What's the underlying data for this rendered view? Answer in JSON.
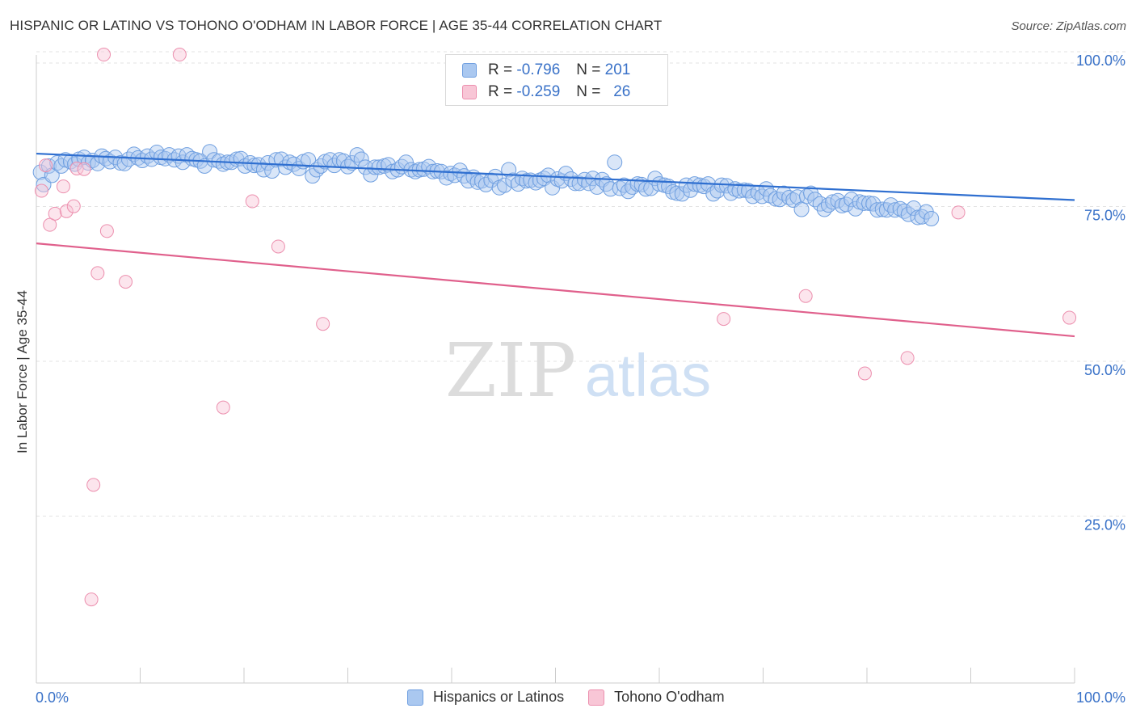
{
  "header": {
    "title": "HISPANIC OR LATINO VS TOHONO O'ODHAM IN LABOR FORCE | AGE 35-44 CORRELATION CHART",
    "source": "Source: ZipAtlas.com"
  },
  "watermark": {
    "zip": "ZIP",
    "atlas": "atlas"
  },
  "legend": {
    "r_label": "R =",
    "n_label": "N =",
    "series": [
      {
        "name": "Hispanics or Latinos",
        "r": "-0.796",
        "n": "201",
        "fill": "#aac8f0",
        "stroke": "#6f9fe0"
      },
      {
        "name": "Tohono O'odham",
        "r": "-0.259",
        "n": "26",
        "fill": "#f8c6d6",
        "stroke": "#ec8fae"
      }
    ]
  },
  "chart_data": {
    "type": "scatter",
    "title": "HISPANIC OR LATINO VS TOHONO O'ODHAM IN LABOR FORCE | AGE 35-44 CORRELATION CHART",
    "xlabel": "",
    "ylabel": "In Labor Force | Age 35-44",
    "xlim": [
      0,
      100
    ],
    "ylim": [
      0,
      105
    ],
    "x_tick_labels": [
      "0.0%",
      "100.0%"
    ],
    "y_tick_labels": [
      "100.0%",
      "75.0%",
      "50.0%",
      "25.0%"
    ],
    "y_ticks": [
      100,
      75,
      50,
      25
    ],
    "grid": true,
    "legend_position": "top-center",
    "colors": {
      "blue_line": "#2f6fd0",
      "pink_line": "#e0608c",
      "axis_text": "#3a72c8"
    },
    "series": [
      {
        "name": "Hispanics or Latinos",
        "trend": {
          "x": [
            0,
            100
          ],
          "y": [
            85.5,
            78.0
          ]
        },
        "points": [
          [
            0.4,
            82.5
          ],
          [
            0.7,
            80.5
          ],
          [
            1.2,
            83.5
          ],
          [
            1.5,
            82.0
          ],
          [
            2.0,
            84.0
          ],
          [
            2.4,
            83.5
          ],
          [
            2.8,
            84.5
          ],
          [
            3.3,
            84.2
          ],
          [
            3.7,
            83.8
          ],
          [
            4.1,
            84.6
          ],
          [
            4.6,
            84.9
          ],
          [
            5.0,
            84.0
          ],
          [
            5.4,
            84.4
          ],
          [
            5.9,
            83.9
          ],
          [
            6.3,
            85.1
          ],
          [
            6.7,
            84.7
          ],
          [
            7.1,
            84.2
          ],
          [
            7.6,
            84.9
          ],
          [
            8.1,
            84.0
          ],
          [
            8.5,
            83.9
          ],
          [
            8.9,
            84.6
          ],
          [
            9.4,
            85.4
          ],
          [
            9.8,
            84.8
          ],
          [
            10.2,
            84.4
          ],
          [
            10.7,
            85.1
          ],
          [
            11.1,
            84.6
          ],
          [
            11.6,
            85.7
          ],
          [
            12.0,
            84.9
          ],
          [
            12.4,
            84.7
          ],
          [
            12.8,
            85.3
          ],
          [
            13.3,
            84.5
          ],
          [
            13.7,
            85.1
          ],
          [
            14.1,
            84.1
          ],
          [
            14.5,
            85.3
          ],
          [
            15.0,
            84.7
          ],
          [
            15.4,
            84.5
          ],
          [
            15.8,
            84.3
          ],
          [
            16.2,
            83.5
          ],
          [
            16.7,
            85.8
          ],
          [
            17.1,
            84.5
          ],
          [
            17.6,
            84.3
          ],
          [
            18.0,
            83.8
          ],
          [
            18.4,
            84.1
          ],
          [
            18.8,
            84.1
          ],
          [
            19.3,
            84.6
          ],
          [
            19.7,
            84.7
          ],
          [
            20.1,
            83.5
          ],
          [
            20.6,
            84.0
          ],
          [
            21.0,
            83.6
          ],
          [
            21.4,
            83.7
          ],
          [
            21.9,
            82.9
          ],
          [
            22.3,
            84.0
          ],
          [
            22.7,
            82.7
          ],
          [
            23.1,
            84.5
          ],
          [
            23.6,
            84.6
          ],
          [
            24.0,
            83.3
          ],
          [
            24.4,
            84.1
          ],
          [
            24.8,
            83.8
          ],
          [
            25.3,
            83.1
          ],
          [
            25.7,
            84.2
          ],
          [
            26.2,
            84.5
          ],
          [
            26.6,
            81.9
          ],
          [
            27.0,
            82.9
          ],
          [
            27.4,
            83.5
          ],
          [
            27.8,
            84.2
          ],
          [
            28.3,
            84.5
          ],
          [
            28.7,
            83.6
          ],
          [
            29.2,
            84.5
          ],
          [
            29.6,
            84.3
          ],
          [
            30.0,
            83.4
          ],
          [
            30.4,
            84.0
          ],
          [
            30.9,
            85.3
          ],
          [
            31.3,
            84.6
          ],
          [
            31.7,
            83.3
          ],
          [
            32.2,
            82.1
          ],
          [
            32.6,
            83.3
          ],
          [
            33.0,
            83.3
          ],
          [
            33.5,
            83.5
          ],
          [
            33.9,
            83.7
          ],
          [
            34.3,
            82.6
          ],
          [
            34.8,
            82.9
          ],
          [
            35.2,
            83.4
          ],
          [
            35.6,
            84.1
          ],
          [
            36.1,
            82.9
          ],
          [
            36.5,
            82.6
          ],
          [
            36.9,
            82.9
          ],
          [
            37.3,
            83.0
          ],
          [
            37.8,
            83.4
          ],
          [
            38.2,
            82.6
          ],
          [
            38.6,
            82.7
          ],
          [
            39.0,
            82.6
          ],
          [
            39.5,
            81.6
          ],
          [
            39.9,
            82.3
          ],
          [
            40.3,
            82.0
          ],
          [
            40.8,
            82.8
          ],
          [
            41.2,
            81.9
          ],
          [
            41.6,
            81.1
          ],
          [
            42.1,
            81.7
          ],
          [
            42.5,
            80.9
          ],
          [
            42.9,
            81.1
          ],
          [
            43.3,
            80.5
          ],
          [
            43.8,
            81.2
          ],
          [
            44.2,
            81.8
          ],
          [
            44.6,
            80.0
          ],
          [
            45.1,
            80.4
          ],
          [
            45.5,
            82.9
          ],
          [
            45.9,
            81.2
          ],
          [
            46.4,
            80.6
          ],
          [
            46.8,
            81.5
          ],
          [
            47.2,
            81.1
          ],
          [
            47.6,
            81.2
          ],
          [
            48.1,
            80.8
          ],
          [
            48.5,
            81.2
          ],
          [
            48.9,
            81.5
          ],
          [
            49.3,
            82.0
          ],
          [
            49.7,
            80.0
          ],
          [
            50.2,
            81.4
          ],
          [
            50.6,
            81.1
          ],
          [
            51.0,
            82.3
          ],
          [
            51.5,
            81.4
          ],
          [
            51.9,
            80.7
          ],
          [
            52.3,
            80.7
          ],
          [
            52.8,
            81.3
          ],
          [
            53.2,
            80.7
          ],
          [
            53.6,
            81.5
          ],
          [
            54.0,
            80.1
          ],
          [
            54.5,
            81.3
          ],
          [
            54.9,
            80.6
          ],
          [
            55.3,
            79.8
          ],
          [
            55.7,
            84.1
          ],
          [
            56.2,
            79.9
          ],
          [
            56.6,
            80.4
          ],
          [
            57.0,
            79.4
          ],
          [
            57.4,
            80.1
          ],
          [
            57.9,
            80.6
          ],
          [
            58.3,
            80.5
          ],
          [
            58.7,
            79.8
          ],
          [
            59.2,
            79.9
          ],
          [
            59.6,
            81.5
          ],
          [
            60.0,
            80.6
          ],
          [
            60.5,
            80.4
          ],
          [
            60.9,
            80.2
          ],
          [
            61.3,
            79.3
          ],
          [
            61.7,
            79.1
          ],
          [
            62.2,
            79.0
          ],
          [
            62.6,
            80.4
          ],
          [
            63.0,
            79.6
          ],
          [
            63.4,
            80.6
          ],
          [
            63.9,
            80.4
          ],
          [
            64.3,
            80.2
          ],
          [
            64.7,
            80.6
          ],
          [
            65.2,
            79.0
          ],
          [
            65.6,
            79.5
          ],
          [
            66.0,
            80.4
          ],
          [
            66.5,
            80.3
          ],
          [
            66.9,
            79.1
          ],
          [
            67.3,
            79.8
          ],
          [
            67.7,
            79.5
          ],
          [
            68.2,
            79.6
          ],
          [
            68.6,
            79.5
          ],
          [
            69.0,
            78.6
          ],
          [
            69.5,
            79.2
          ],
          [
            69.9,
            78.6
          ],
          [
            70.3,
            79.8
          ],
          [
            70.7,
            78.7
          ],
          [
            71.2,
            78.2
          ],
          [
            71.6,
            78.1
          ],
          [
            72.0,
            79.1
          ],
          [
            72.5,
            78.4
          ],
          [
            72.9,
            78.0
          ],
          [
            73.3,
            78.5
          ],
          [
            73.7,
            76.5
          ],
          [
            74.2,
            78.6
          ],
          [
            74.6,
            79.1
          ],
          [
            75.0,
            78.1
          ],
          [
            75.5,
            77.4
          ],
          [
            75.9,
            76.5
          ],
          [
            76.3,
            77.2
          ],
          [
            76.7,
            77.7
          ],
          [
            77.2,
            77.9
          ],
          [
            77.6,
            77.1
          ],
          [
            78.0,
            77.3
          ],
          [
            78.5,
            78.1
          ],
          [
            78.9,
            76.6
          ],
          [
            79.3,
            77.7
          ],
          [
            79.7,
            77.5
          ],
          [
            80.2,
            77.5
          ],
          [
            80.6,
            77.4
          ],
          [
            81.0,
            76.4
          ],
          [
            81.5,
            76.5
          ],
          [
            81.9,
            76.4
          ],
          [
            82.3,
            77.2
          ],
          [
            82.7,
            76.4
          ],
          [
            83.2,
            76.6
          ],
          [
            83.6,
            76.2
          ],
          [
            84.0,
            75.7
          ],
          [
            84.5,
            76.7
          ],
          [
            84.9,
            75.2
          ],
          [
            85.3,
            75.3
          ],
          [
            85.7,
            76.1
          ],
          [
            86.2,
            75.0
          ]
        ]
      },
      {
        "name": "Tohono O'odham",
        "trend": {
          "x": [
            0,
            100
          ],
          "y": [
            71.0,
            56.0
          ]
        },
        "points": [
          [
            0.5,
            79.5
          ],
          [
            0.9,
            83.6
          ],
          [
            1.3,
            74.0
          ],
          [
            1.8,
            75.8
          ],
          [
            2.6,
            80.2
          ],
          [
            2.9,
            76.2
          ],
          [
            3.6,
            77.0
          ],
          [
            3.9,
            83.1
          ],
          [
            4.6,
            83.0
          ],
          [
            5.3,
            13.5
          ],
          [
            5.5,
            32.0
          ],
          [
            5.9,
            66.2
          ],
          [
            6.5,
            101.5
          ],
          [
            6.8,
            73.0
          ],
          [
            8.6,
            64.8
          ],
          [
            13.8,
            101.5
          ],
          [
            18.0,
            44.5
          ],
          [
            20.8,
            77.8
          ],
          [
            23.3,
            70.5
          ],
          [
            27.6,
            58.0
          ],
          [
            66.2,
            58.8
          ],
          [
            74.1,
            62.5
          ],
          [
            79.8,
            50.0
          ],
          [
            83.9,
            52.5
          ],
          [
            88.8,
            76.0
          ],
          [
            99.5,
            59.0
          ]
        ]
      }
    ]
  }
}
